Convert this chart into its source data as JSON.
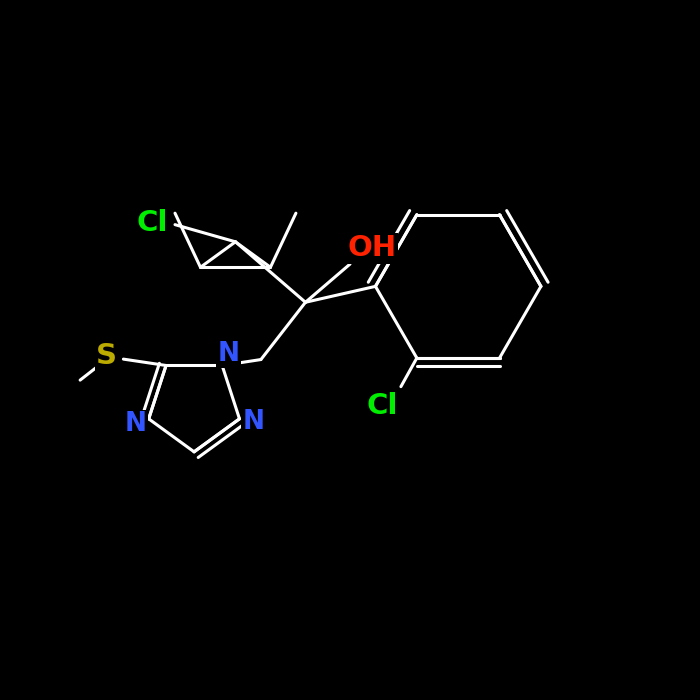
{
  "bg_color": "#000000",
  "bond_color": "#ffffff",
  "bond_lw": 2.2,
  "atom_colors": {
    "Cl": "#00ee00",
    "OH": "#ff2200",
    "S": "#bbaa00",
    "N": "#3355ff",
    "C": "#ffffff"
  },
  "label_fontsize": 21,
  "n_label_fontsize": 19,
  "fig_size": [
    7.0,
    7.0
  ],
  "dpi": 100,
  "xlim": [
    -0.05,
    1.05
  ],
  "ylim": [
    -0.05,
    1.05
  ]
}
